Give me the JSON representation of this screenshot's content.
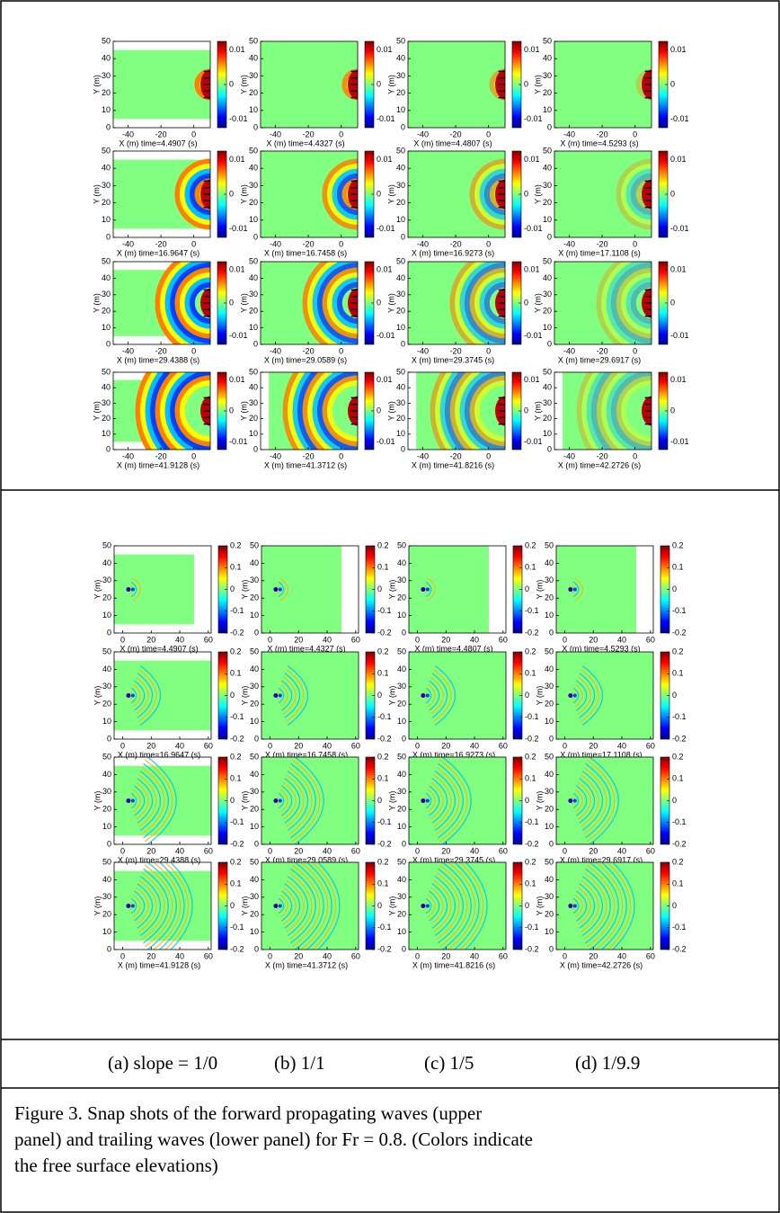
{
  "panels": [
    {
      "xticks": [
        "-40",
        "-20",
        "0"
      ],
      "yticks": [
        "0",
        "10",
        "20",
        "30",
        "40",
        "50"
      ],
      "ylabel": "Y (m)",
      "colorbar_ticks": [
        "0.01",
        "0",
        "-0.01"
      ],
      "rows": [
        [
          "X (m) time=4.4907 (s)",
          "X (m) time=4.4327 (s)",
          "X (m) time=4.4807 (s)",
          "X (m) time=4.5293 (s)"
        ],
        [
          "X (m) time=16.9647 (s)",
          "X (m) time=16.7458 (s)",
          "X (m) time=16.9273 (s)",
          "X (m) time=17.1108 (s)"
        ],
        [
          "X (m) time=29.4388 (s)",
          "X (m) time=29.0589 (s)",
          "X (m) time=29.3745 (s)",
          "X (m) time=29.6917 (s)"
        ],
        [
          "X (m) time=41.9128 (s)",
          "X (m) time=41.3712 (s)",
          "X (m) time=41.8216 (s)",
          "X (m) time=42.2726 (s)"
        ]
      ]
    },
    {
      "xticks": [
        "0",
        "20",
        "40",
        "60"
      ],
      "yticks": [
        "0",
        "10",
        "20",
        "30",
        "40",
        "50"
      ],
      "ylabel": "Y (m)",
      "colorbar_ticks": [
        "0.2",
        "0.1",
        "0",
        "-0.1",
        "-0.2"
      ],
      "rows": [
        [
          "X (m) time=4.4907 (s)",
          "X (m) time=4.4327 (s)",
          "X (m) time=4.4807 (s)",
          "X (m) time=4.5293 (s)"
        ],
        [
          "X (m) time=16.9647 (s)",
          "X (m) time=16.7458 (s)",
          "X (m) time=16.9273 (s)",
          "X (m) time=17.1108 (s)"
        ],
        [
          "X (m) time=29.4388 (s)",
          "X (m) time=29.0589 (s)",
          "X (m) time=29.3745 (s)",
          "X (m) time=29.6917 (s)"
        ],
        [
          "X (m) time=41.9128 (s)",
          "X (m) time=41.3712 (s)",
          "X (m) time=41.8216 (s)",
          "X (m) time=42.2726 (s)"
        ]
      ]
    }
  ],
  "columns": [
    "(a) slope = 1/0",
    "(b)  1/1",
    "(c) 1/5",
    "(d) 1/9.9"
  ],
  "caption": [
    "Figure 3.  Snap shots of the forward propagating waves (upper",
    "panel) and trailing waves (lower panel) for Fr = 0.8. (Colors indicate",
    "the free surface elevations)"
  ]
}
